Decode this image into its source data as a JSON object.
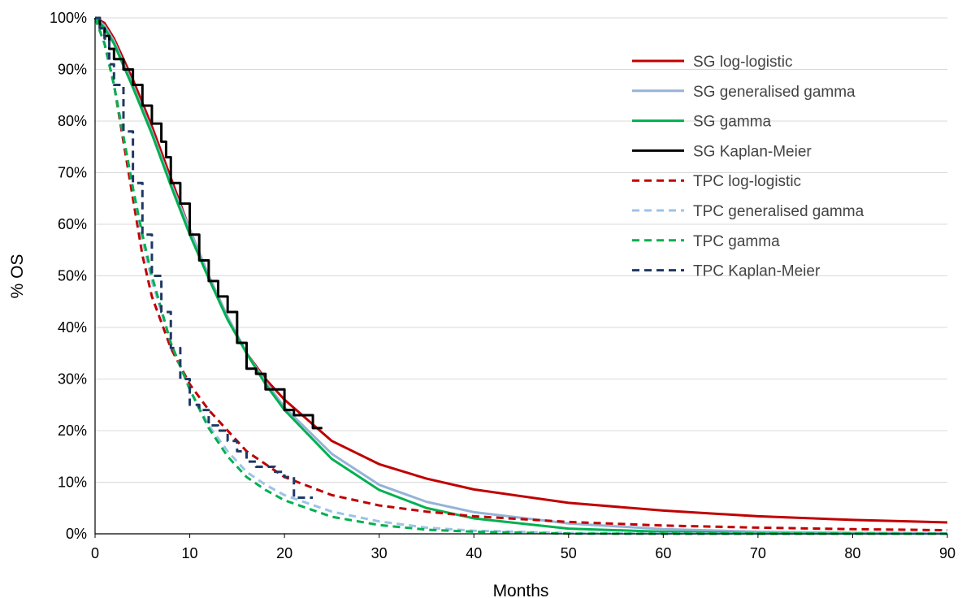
{
  "chart_data": {
    "type": "line",
    "title": "",
    "xlabel": "Months",
    "ylabel": "% OS",
    "xlim": [
      0,
      90
    ],
    "ylim": [
      0,
      100
    ],
    "x_ticks": [
      0,
      10,
      20,
      30,
      40,
      50,
      60,
      70,
      80,
      90
    ],
    "y_ticks": [
      0,
      10,
      20,
      30,
      40,
      50,
      60,
      70,
      80,
      90,
      100
    ],
    "y_tick_format": "percent",
    "grid": "horizontal",
    "legend_position": "top-right",
    "series": [
      {
        "name": "SG log-logistic",
        "color": "#C00000",
        "dash": "solid",
        "x": [
          0,
          1,
          2,
          4,
          6,
          8,
          10,
          12,
          14,
          16,
          18,
          20,
          25,
          30,
          35,
          40,
          50,
          60,
          70,
          80,
          90
        ],
        "y": [
          100,
          99,
          96,
          88,
          79,
          69,
          59,
          50,
          42,
          35,
          30,
          26,
          18,
          13.5,
          10.7,
          8.6,
          6,
          4.5,
          3.4,
          2.7,
          2.2
        ]
      },
      {
        "name": "SG generalised gamma",
        "color": "#95B3D7",
        "dash": "solid",
        "x": [
          0,
          1,
          2,
          4,
          6,
          8,
          10,
          12,
          14,
          16,
          18,
          20,
          25,
          30,
          35,
          40,
          50,
          60,
          70,
          80,
          90
        ],
        "y": [
          100,
          98.5,
          95.5,
          87,
          78,
          68,
          59,
          50,
          42,
          35,
          29.5,
          24.5,
          15.5,
          9.5,
          6.2,
          4.2,
          2,
          0.9,
          0.4,
          0.2,
          0.1
        ]
      },
      {
        "name": "SG gamma",
        "color": "#00B050",
        "dash": "solid",
        "x": [
          0,
          1,
          2,
          4,
          6,
          8,
          10,
          12,
          14,
          16,
          18,
          20,
          25,
          30,
          35,
          40,
          50,
          60,
          70,
          80,
          90
        ],
        "y": [
          100,
          98,
          95,
          86.5,
          77.5,
          67.5,
          58,
          49.5,
          41.5,
          35,
          29,
          24,
          14.5,
          8.5,
          5,
          3,
          1,
          0.4,
          0.1,
          0.05,
          0
        ]
      },
      {
        "name": "SG Kaplan-Meier",
        "color": "#000000",
        "dash": "solid",
        "x": [
          0,
          0.5,
          1,
          1.5,
          2,
          3,
          4,
          5,
          6,
          7,
          7.5,
          8,
          9,
          10,
          11,
          12,
          13,
          14,
          15,
          16,
          17,
          18,
          19,
          20,
          21,
          22,
          23,
          24
        ],
        "y": [
          100,
          98,
          96.5,
          94,
          92,
          90,
          87,
          83,
          79.5,
          76,
          73,
          68,
          64,
          58,
          53,
          49,
          46,
          43,
          37,
          32,
          31,
          28,
          28,
          24,
          23,
          23,
          20.5,
          20.5
        ]
      },
      {
        "name": "TPC log-logistic",
        "color": "#C00000",
        "dash": "dashed",
        "x": [
          0,
          1,
          2,
          3,
          4,
          5,
          6,
          8,
          10,
          12,
          14,
          16,
          18,
          20,
          25,
          30,
          35,
          40,
          50,
          60,
          70,
          80,
          90
        ],
        "y": [
          100,
          95,
          87,
          76,
          65,
          54,
          46,
          36,
          29,
          24,
          20,
          16,
          13.5,
          11,
          7.5,
          5.5,
          4.3,
          3.4,
          2.3,
          1.6,
          1.2,
          0.9,
          0.7
        ]
      },
      {
        "name": "TPC generalised gamma",
        "color": "#9DC3E6",
        "dash": "dashed",
        "x": [
          0,
          1,
          2,
          3,
          4,
          5,
          6,
          8,
          10,
          12,
          14,
          16,
          18,
          20,
          25,
          30,
          35,
          40,
          50,
          60,
          70,
          80,
          90
        ],
        "y": [
          100,
          95,
          87,
          77,
          67,
          57,
          49,
          37,
          28,
          21,
          16,
          12,
          9.5,
          7.5,
          4.3,
          2.4,
          1.2,
          0.6,
          0.15,
          0.05,
          0,
          0,
          0
        ]
      },
      {
        "name": "TPC gamma",
        "color": "#00B050",
        "dash": "dashed",
        "x": [
          0,
          1,
          2,
          3,
          4,
          5,
          6,
          8,
          10,
          12,
          14,
          16,
          18,
          20,
          25,
          30,
          35,
          40,
          50,
          60,
          70,
          80,
          90
        ],
        "y": [
          100,
          95,
          87,
          77,
          67,
          58,
          50,
          37,
          28,
          20.5,
          15,
          11,
          8.5,
          6.5,
          3.3,
          1.7,
          0.8,
          0.4,
          0.05,
          0,
          0,
          0,
          0
        ]
      },
      {
        "name": "TPC Kaplan-Meier",
        "color": "#1F3864",
        "dash": "dashed",
        "x": [
          0,
          0.5,
          1,
          1.5,
          2,
          3,
          4,
          5,
          6,
          7,
          8,
          9,
          10,
          11,
          12,
          13,
          14,
          15,
          16,
          17,
          18,
          19,
          20,
          21,
          22,
          23
        ],
        "y": [
          100,
          98,
          96,
          91,
          87,
          78,
          68,
          58,
          50,
          43,
          36,
          30,
          25,
          24,
          21,
          20,
          18,
          16,
          14,
          13,
          13,
          12,
          11,
          7,
          7,
          7
        ]
      }
    ]
  }
}
